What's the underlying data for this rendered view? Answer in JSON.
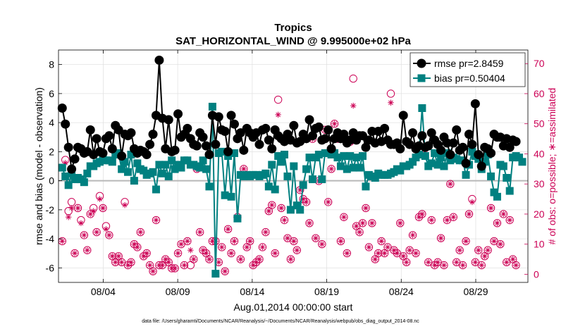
{
  "chart_data": {
    "type": "line",
    "title": "Tropics",
    "subtitle": "SAT_HORIZONTAL_WIND @ 9.995000e+02 hPa",
    "xlabel": "Aug.01,2014 00:00:00 start",
    "ylabel": "rmse and bias (model - observation)",
    "ylabel_right": "# of obs: o=possible; ∗=assimilated",
    "footnote": "data file: /Users/gharamti/Documents/NCAR/Reanalysis/~/Documents/NCAR/Reanalysis/webpub/obs_diag_output_2014-08.nc",
    "xlim": [
      0,
      31.5
    ],
    "ylim": [
      -7,
      9
    ],
    "ylim_right": [
      -2.7,
      74.5
    ],
    "x_ticks": [
      3,
      8,
      13,
      18,
      23,
      28
    ],
    "x_tick_labels": [
      "08/04",
      "08/09",
      "08/14",
      "08/19",
      "08/24",
      "08/29"
    ],
    "y_ticks": [
      -6,
      -4,
      -2,
      0,
      2,
      4,
      6,
      8
    ],
    "y_tick_labels": [
      "-6",
      "-4",
      "-2",
      "0",
      "2",
      "4",
      "6",
      "8"
    ],
    "y_ticks_right": [
      0,
      10,
      20,
      30,
      40,
      50,
      60,
      70
    ],
    "y_tick_labels_right": [
      "0",
      "10",
      "20",
      "30",
      "40",
      "50",
      "60",
      "70"
    ],
    "grid": true,
    "legend_position": "top-right",
    "colors": {
      "rmse": "#000000",
      "bias": "#008080",
      "obs": "#cc0055",
      "grid": "#e2e2e2",
      "zero_line": "#b8b8b8"
    },
    "series": [
      {
        "name": "rmse pr=2.8459",
        "axis": "left",
        "marker": "filled-circle",
        "values": [
          5.0,
          3.9,
          2.3,
          0.8,
          1.5,
          2.3,
          2.2,
          1.9,
          2.0,
          3.5,
          1.8,
          2.9,
          2.0,
          1.9,
          2.9,
          3.1,
          2.2,
          3.8,
          3.5,
          1.7,
          3.2,
          3.1,
          3.3,
          2.2,
          1.9,
          2.1,
          2.0,
          1.8,
          2.5,
          3.2,
          4.5,
          8.3,
          4.3,
          2.2,
          4.2,
          2.0,
          2.1,
          4.6,
          3.0,
          3.2,
          3.6,
          2.9,
          2.5,
          2.4,
          3.3,
          3.0,
          2.4,
          1.8,
          4.5,
          2.5,
          4.4,
          3.5,
          3.4,
          2.0,
          4.5,
          3.9,
          2.9,
          3.3,
          2.1,
          3.6,
          3.3,
          3.0,
          3.3,
          2.5,
          3.5,
          3.6,
          2.8,
          2.2,
          3.5,
          3.1,
          2.9,
          2.7,
          3.2,
          2.8,
          3.8,
          2.6,
          2.7,
          3.2,
          2.9,
          4.2,
          3.1,
          3.6,
          3.7,
          2.8,
          2.9,
          3.5,
          2.2,
          2.9,
          3.3,
          2.9,
          3.2,
          2.6,
          2.8,
          3.3,
          2.8,
          3.1,
          3.1,
          2.3,
          2.8,
          3.4,
          2.6,
          3.4,
          2.7,
          3.6,
          2.8,
          2.5,
          2.5,
          2.6,
          2.2,
          4.5,
          2.7,
          2.5,
          3.3,
          2.2,
          2.4,
          3.1,
          2.3,
          2.4,
          3.3,
          2.8,
          2.5,
          2.1,
          3.0,
          2.6,
          1.8,
          2.6,
          3.5,
          2.1,
          2.3,
          1.2,
          3.2,
          2.5,
          5.3,
          1.8,
          1.0,
          2.3,
          2.2,
          1.9,
          3.2,
          3.0,
          3.0,
          2.4,
          2.9,
          2.3,
          2.8,
          2.7
        ]
      },
      {
        "name": "bias pr=0.50404",
        "axis": "left",
        "marker": "filled-square",
        "values": [
          0.9,
          0.3,
          -0.3,
          0.5,
          0.1,
          0.2,
          0.1,
          -0.1,
          0.5,
          1.0,
          1.0,
          1.2,
          1.3,
          1.8,
          1.4,
          1.4,
          1.3,
          1.8,
          1.9,
          0.8,
          1.3,
          0.6,
          1.8,
          0.0,
          1.2,
          0.8,
          0.7,
          0.4,
          0.5,
          0.6,
          -0.6,
          1.1,
          0.5,
          1.1,
          0.3,
          1.4,
          0.8,
          1.1,
          0.9,
          1.4,
          1.4,
          1.1,
          1.1,
          1.0,
          0.9,
          1.4,
          0.8,
          -0.4,
          5.1,
          -6.4,
          1.9,
          2.0,
          -1.0,
          1.7,
          -1.1,
          1.9,
          -2.6,
          0.4,
          0.3,
          0.4,
          0.3,
          0.4,
          0.4,
          0.3,
          0.4,
          0.5,
          -0.4,
          1.1,
          -0.6,
          1.7,
          1.3,
          1.8,
          0.3,
          -2.0,
          1.0,
          -1.7,
          -2.0,
          -0.3,
          0.8,
          1.6,
          0.1,
          1.6,
          1.8,
          0.1,
          1.9,
          1.9,
          1.8,
          1.9,
          1.6,
          1.0,
          1.7,
          0.8,
          1.7,
          0.9,
          1.6,
          0.9,
          1.7,
          -0.4,
          0.4,
          0.3,
          0.2,
          0.5,
          0.4,
          0.4,
          0.4,
          0.5,
          0.6,
          0.8,
          0.7,
          1.0,
          1.0,
          1.1,
          1.3,
          1.6,
          1.8,
          5.0,
          1.7,
          1.0,
          1.2,
          1.9,
          1.1,
          1.6,
          1.0,
          1.9,
          1.4,
          1.6,
          1.5,
          1.4,
          1.4,
          0.4,
          1.1,
          2.0,
          1.7,
          1.5,
          0.8,
          1.3,
          1.8,
          0.3,
          -0.8,
          -1.1,
          1.1,
          1.0,
          0.2,
          -0.7,
          1.6,
          1.7,
          1.6,
          1.3
        ]
      },
      {
        "name": "# of obs: o=possible",
        "axis": "right",
        "marker": "open-circle",
        "values": [
          11,
          38,
          21,
          24,
          7,
          22,
          18,
          13,
          8,
          20,
          22,
          14,
          26,
          22,
          16,
          13,
          6,
          4,
          6,
          4,
          24,
          3,
          4,
          10,
          9,
          14,
          6,
          7,
          3,
          1,
          18,
          3,
          3,
          5,
          4,
          2,
          2,
          7,
          10,
          3,
          11,
          3,
          5,
          35,
          14,
          8,
          7,
          5,
          11,
          11,
          4,
          9,
          1,
          15,
          7,
          11,
          19,
          5,
          35,
          9,
          11,
          3,
          4,
          5,
          9,
          14,
          21,
          23,
          7,
          58,
          22,
          18,
          12,
          5,
          11,
          8,
          28,
          25,
          24,
          17,
          45,
          12,
          31,
          10,
          48,
          24,
          35,
          50,
          45,
          11,
          19,
          7,
          44,
          65,
          16,
          14,
          17,
          22,
          9,
          17,
          5,
          7,
          11,
          7,
          9,
          60,
          8,
          7,
          17,
          6,
          4,
          8,
          13,
          7,
          19,
          20,
          42,
          4,
          18,
          3,
          4,
          12,
          3,
          18,
          30,
          19,
          4,
          8,
          3,
          11,
          20,
          25,
          4,
          8,
          3,
          6,
          8,
          22,
          11,
          17,
          10,
          20,
          4,
          18,
          5,
          3
        ]
      },
      {
        "name": "# of obs: ∗=assimilated",
        "axis": "right",
        "marker": "asterisk",
        "values": [
          11,
          37,
          19,
          22,
          7,
          22,
          17,
          13,
          8,
          20,
          21,
          14,
          25,
          22,
          15,
          13,
          6,
          4,
          6,
          4,
          23,
          3,
          4,
          10,
          9,
          14,
          6,
          7,
          3,
          1,
          18,
          3,
          3,
          5,
          4,
          2,
          2,
          7,
          10,
          3,
          11,
          8,
          5,
          35,
          14,
          8,
          7,
          5,
          11,
          11,
          4,
          9,
          1,
          15,
          7,
          11,
          19,
          5,
          35,
          9,
          11,
          3,
          4,
          5,
          9,
          14,
          21,
          23,
          7,
          53,
          22,
          18,
          12,
          5,
          11,
          8,
          28,
          25,
          24,
          17,
          45,
          12,
          31,
          10,
          48,
          24,
          35,
          50,
          45,
          11,
          19,
          7,
          44,
          56,
          16,
          14,
          17,
          22,
          9,
          17,
          5,
          7,
          11,
          7,
          9,
          57,
          8,
          7,
          17,
          6,
          4,
          8,
          13,
          7,
          19,
          20,
          40,
          4,
          18,
          3,
          4,
          12,
          3,
          18,
          30,
          19,
          4,
          8,
          3,
          11,
          20,
          24,
          4,
          8,
          3,
          6,
          8,
          22,
          11,
          17,
          10,
          20,
          4,
          18,
          5,
          3
        ]
      }
    ]
  }
}
